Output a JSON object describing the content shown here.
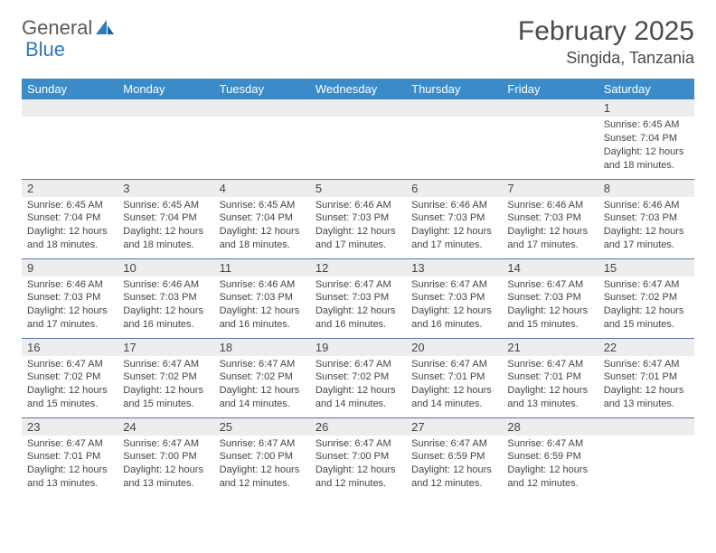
{
  "logo": {
    "word1": "General",
    "word2": "Blue"
  },
  "title": "February 2025",
  "location": "Singida, Tanzania",
  "colors": {
    "header_bg": "#3b8bc9",
    "header_text": "#ffffff",
    "daynum_bg": "#ededed",
    "row_border": "#5577aa",
    "text": "#444444",
    "logo_gray": "#5a5a5a",
    "logo_blue": "#2b7bbf"
  },
  "weekdays": [
    "Sunday",
    "Monday",
    "Tuesday",
    "Wednesday",
    "Thursday",
    "Friday",
    "Saturday"
  ],
  "weeks": [
    [
      {
        "n": "",
        "sr": "",
        "ss": "",
        "dl": ""
      },
      {
        "n": "",
        "sr": "",
        "ss": "",
        "dl": ""
      },
      {
        "n": "",
        "sr": "",
        "ss": "",
        "dl": ""
      },
      {
        "n": "",
        "sr": "",
        "ss": "",
        "dl": ""
      },
      {
        "n": "",
        "sr": "",
        "ss": "",
        "dl": ""
      },
      {
        "n": "",
        "sr": "",
        "ss": "",
        "dl": ""
      },
      {
        "n": "1",
        "sr": "Sunrise: 6:45 AM",
        "ss": "Sunset: 7:04 PM",
        "dl": "Daylight: 12 hours and 18 minutes."
      }
    ],
    [
      {
        "n": "2",
        "sr": "Sunrise: 6:45 AM",
        "ss": "Sunset: 7:04 PM",
        "dl": "Daylight: 12 hours and 18 minutes."
      },
      {
        "n": "3",
        "sr": "Sunrise: 6:45 AM",
        "ss": "Sunset: 7:04 PM",
        "dl": "Daylight: 12 hours and 18 minutes."
      },
      {
        "n": "4",
        "sr": "Sunrise: 6:45 AM",
        "ss": "Sunset: 7:04 PM",
        "dl": "Daylight: 12 hours and 18 minutes."
      },
      {
        "n": "5",
        "sr": "Sunrise: 6:46 AM",
        "ss": "Sunset: 7:03 PM",
        "dl": "Daylight: 12 hours and 17 minutes."
      },
      {
        "n": "6",
        "sr": "Sunrise: 6:46 AM",
        "ss": "Sunset: 7:03 PM",
        "dl": "Daylight: 12 hours and 17 minutes."
      },
      {
        "n": "7",
        "sr": "Sunrise: 6:46 AM",
        "ss": "Sunset: 7:03 PM",
        "dl": "Daylight: 12 hours and 17 minutes."
      },
      {
        "n": "8",
        "sr": "Sunrise: 6:46 AM",
        "ss": "Sunset: 7:03 PM",
        "dl": "Daylight: 12 hours and 17 minutes."
      }
    ],
    [
      {
        "n": "9",
        "sr": "Sunrise: 6:46 AM",
        "ss": "Sunset: 7:03 PM",
        "dl": "Daylight: 12 hours and 17 minutes."
      },
      {
        "n": "10",
        "sr": "Sunrise: 6:46 AM",
        "ss": "Sunset: 7:03 PM",
        "dl": "Daylight: 12 hours and 16 minutes."
      },
      {
        "n": "11",
        "sr": "Sunrise: 6:46 AM",
        "ss": "Sunset: 7:03 PM",
        "dl": "Daylight: 12 hours and 16 minutes."
      },
      {
        "n": "12",
        "sr": "Sunrise: 6:47 AM",
        "ss": "Sunset: 7:03 PM",
        "dl": "Daylight: 12 hours and 16 minutes."
      },
      {
        "n": "13",
        "sr": "Sunrise: 6:47 AM",
        "ss": "Sunset: 7:03 PM",
        "dl": "Daylight: 12 hours and 16 minutes."
      },
      {
        "n": "14",
        "sr": "Sunrise: 6:47 AM",
        "ss": "Sunset: 7:03 PM",
        "dl": "Daylight: 12 hours and 15 minutes."
      },
      {
        "n": "15",
        "sr": "Sunrise: 6:47 AM",
        "ss": "Sunset: 7:02 PM",
        "dl": "Daylight: 12 hours and 15 minutes."
      }
    ],
    [
      {
        "n": "16",
        "sr": "Sunrise: 6:47 AM",
        "ss": "Sunset: 7:02 PM",
        "dl": "Daylight: 12 hours and 15 minutes."
      },
      {
        "n": "17",
        "sr": "Sunrise: 6:47 AM",
        "ss": "Sunset: 7:02 PM",
        "dl": "Daylight: 12 hours and 15 minutes."
      },
      {
        "n": "18",
        "sr": "Sunrise: 6:47 AM",
        "ss": "Sunset: 7:02 PM",
        "dl": "Daylight: 12 hours and 14 minutes."
      },
      {
        "n": "19",
        "sr": "Sunrise: 6:47 AM",
        "ss": "Sunset: 7:02 PM",
        "dl": "Daylight: 12 hours and 14 minutes."
      },
      {
        "n": "20",
        "sr": "Sunrise: 6:47 AM",
        "ss": "Sunset: 7:01 PM",
        "dl": "Daylight: 12 hours and 14 minutes."
      },
      {
        "n": "21",
        "sr": "Sunrise: 6:47 AM",
        "ss": "Sunset: 7:01 PM",
        "dl": "Daylight: 12 hours and 13 minutes."
      },
      {
        "n": "22",
        "sr": "Sunrise: 6:47 AM",
        "ss": "Sunset: 7:01 PM",
        "dl": "Daylight: 12 hours and 13 minutes."
      }
    ],
    [
      {
        "n": "23",
        "sr": "Sunrise: 6:47 AM",
        "ss": "Sunset: 7:01 PM",
        "dl": "Daylight: 12 hours and 13 minutes."
      },
      {
        "n": "24",
        "sr": "Sunrise: 6:47 AM",
        "ss": "Sunset: 7:00 PM",
        "dl": "Daylight: 12 hours and 13 minutes."
      },
      {
        "n": "25",
        "sr": "Sunrise: 6:47 AM",
        "ss": "Sunset: 7:00 PM",
        "dl": "Daylight: 12 hours and 12 minutes."
      },
      {
        "n": "26",
        "sr": "Sunrise: 6:47 AM",
        "ss": "Sunset: 7:00 PM",
        "dl": "Daylight: 12 hours and 12 minutes."
      },
      {
        "n": "27",
        "sr": "Sunrise: 6:47 AM",
        "ss": "Sunset: 6:59 PM",
        "dl": "Daylight: 12 hours and 12 minutes."
      },
      {
        "n": "28",
        "sr": "Sunrise: 6:47 AM",
        "ss": "Sunset: 6:59 PM",
        "dl": "Daylight: 12 hours and 12 minutes."
      },
      {
        "n": "",
        "sr": "",
        "ss": "",
        "dl": ""
      }
    ]
  ]
}
